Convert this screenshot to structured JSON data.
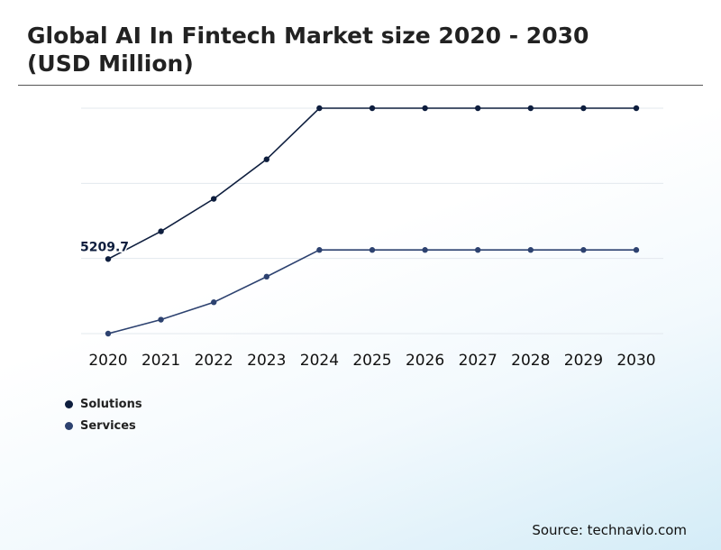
{
  "header": {
    "title": "Global AI In Fintech Market size 2020 - 2030 (USD Million)"
  },
  "chart_data": {
    "type": "line",
    "title": "Global AI In Fintech Market size 2020 - 2030 (USD Million)",
    "xlabel": "",
    "ylabel": "",
    "categories": [
      "2020",
      "2021",
      "2022",
      "2023",
      "2024",
      "2025",
      "2026",
      "2027",
      "2028",
      "2029",
      "2030"
    ],
    "series": [
      {
        "name": "Solutions",
        "color": "#0e1e3e",
        "values": [
          5209.7,
          6400,
          7800,
          9500,
          11700,
          11700,
          11700,
          11700,
          11700,
          11700,
          11700
        ]
      },
      {
        "name": "Services",
        "color": "#2d4270",
        "values": [
          2000,
          2600,
          3350,
          4450,
          5600,
          5600,
          5600,
          5600,
          5600,
          5600,
          5600
        ]
      }
    ],
    "data_labels": [
      {
        "series": "Solutions",
        "category": "2020",
        "text": "5209.7"
      }
    ],
    "ylim": [
      2000,
      11700
    ],
    "grid": true,
    "legend": "bottom-left"
  },
  "footer": {
    "source": "Source: technavio.com"
  }
}
